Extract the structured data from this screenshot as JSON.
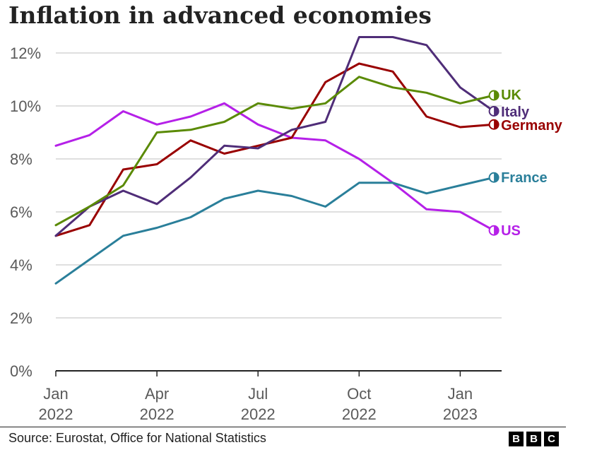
{
  "title": "Inflation in advanced economies",
  "source": "Source: Eurostat, Office for National Statistics",
  "logo": {
    "letters": [
      "B",
      "B",
      "C"
    ]
  },
  "chart_data": {
    "type": "line",
    "title": "Inflation in advanced economies",
    "xlabel": "",
    "ylabel": "",
    "ylim": [
      0,
      12.5
    ],
    "y_ticks": [
      0,
      2,
      4,
      6,
      8,
      10,
      12
    ],
    "y_tick_labels": [
      "0%",
      "2%",
      "4%",
      "6%",
      "8%",
      "10%",
      "12%"
    ],
    "x_ticks": [
      {
        "index": 0,
        "label": [
          "Jan",
          "2022"
        ]
      },
      {
        "index": 3,
        "label": [
          "Apr",
          "2022"
        ]
      },
      {
        "index": 6,
        "label": [
          "Jul",
          "2022"
        ]
      },
      {
        "index": 9,
        "label": [
          "Oct",
          "2022"
        ]
      },
      {
        "index": 12,
        "label": [
          "Jan",
          "2023"
        ]
      }
    ],
    "x": [
      "Jan 2022",
      "Feb 2022",
      "Mar 2022",
      "Apr 2022",
      "May 2022",
      "Jun 2022",
      "Jul 2022",
      "Aug 2022",
      "Sep 2022",
      "Oct 2022",
      "Nov 2022",
      "Dec 2022",
      "Jan 2023",
      "Feb 2023"
    ],
    "grid": true,
    "legend": "end-of-line labels",
    "series": [
      {
        "name": "US",
        "color": "#b520e8",
        "values": [
          8.5,
          8.9,
          9.8,
          9.3,
          9.6,
          10.1,
          9.3,
          8.8,
          8.7,
          8.0,
          7.1,
          6.1,
          6.0,
          5.3
        ]
      },
      {
        "name": "France",
        "color": "#2a7f9a",
        "values": [
          3.3,
          4.2,
          5.1,
          5.4,
          5.8,
          6.5,
          6.8,
          6.6,
          6.2,
          7.1,
          7.1,
          6.7,
          7.0,
          7.3
        ]
      },
      {
        "name": "Germany",
        "color": "#990000",
        "values": [
          5.1,
          5.5,
          7.6,
          7.8,
          8.7,
          8.2,
          8.5,
          8.8,
          10.9,
          11.6,
          11.3,
          9.6,
          9.2,
          9.3
        ]
      },
      {
        "name": "Italy",
        "color": "#4f2d78",
        "values": [
          5.1,
          6.2,
          6.8,
          6.3,
          7.3,
          8.5,
          8.4,
          9.1,
          9.4,
          12.6,
          12.6,
          12.3,
          10.7,
          9.8
        ]
      },
      {
        "name": "UK",
        "color": "#5a8a05",
        "values": [
          5.5,
          6.2,
          7.0,
          9.0,
          9.1,
          9.4,
          10.1,
          9.9,
          10.1,
          11.1,
          10.7,
          10.5,
          10.1,
          10.4
        ]
      }
    ]
  }
}
